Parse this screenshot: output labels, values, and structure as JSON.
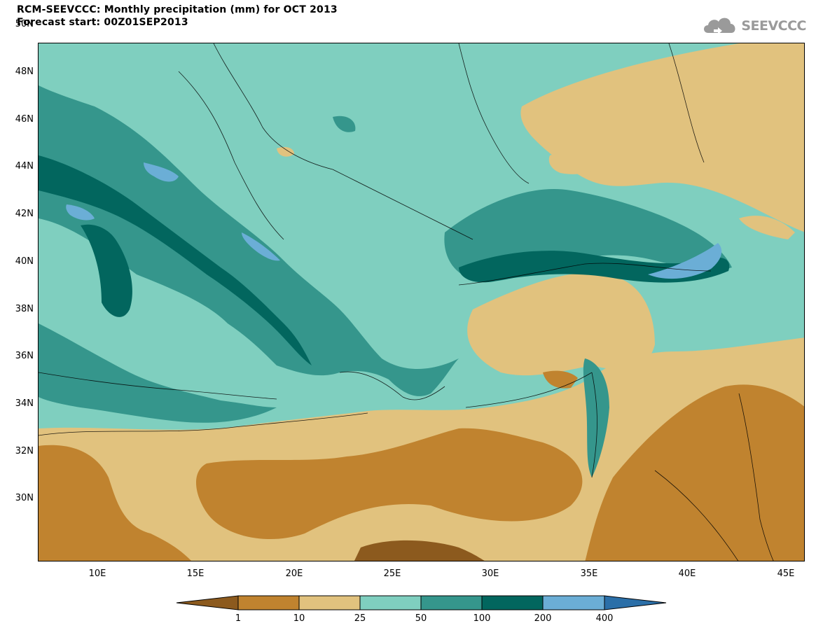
{
  "title": {
    "line1": "RCM-SEEVCCC: Monthly precipitation (mm) for OCT 2013",
    "line2": "Forecast start: 00Z01SEP2013"
  },
  "logo": {
    "text": "SEEVCCC",
    "icon": "cloud-icon"
  },
  "map": {
    "lon_range": [
      7,
      46
    ],
    "lat_range": [
      29,
      51
    ],
    "lat_labels": [
      "50N",
      "48N",
      "46N",
      "44N",
      "42N",
      "40N",
      "38N",
      "36N",
      "34N",
      "32N",
      "30N"
    ],
    "lon_labels": [
      "10E",
      "15E",
      "20E",
      "25E",
      "30E",
      "35E",
      "40E",
      "45E"
    ]
  },
  "legend": {
    "labels": [
      "1",
      "10",
      "25",
      "50",
      "100",
      "200",
      "400"
    ],
    "colors": {
      "lt1": "#8c5a1e",
      "c1_10": "#c0832f",
      "c10_25": "#e1c27e",
      "c25_50": "#7fcfbf",
      "c50_100": "#35968c",
      "c100_200": "#02665e",
      "c200_400": "#6baed6",
      "gt400": "#2b6fa8"
    }
  }
}
